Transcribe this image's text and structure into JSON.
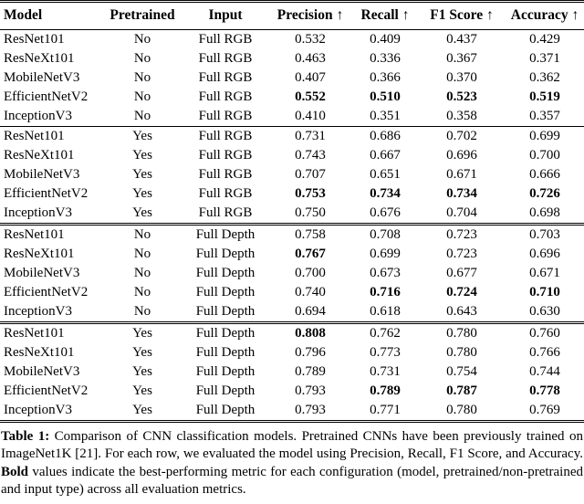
{
  "page": {
    "background_color": "#ffffff",
    "text_color": "#000000"
  },
  "table": {
    "columns": [
      {
        "label": "Model",
        "align": "left"
      },
      {
        "label": "Pretrained",
        "align": "center"
      },
      {
        "label": "Input",
        "align": "center"
      },
      {
        "label": "Precision ↑",
        "align": "center"
      },
      {
        "label": "Recall ↑",
        "align": "center"
      },
      {
        "label": "F1 Score ↑",
        "align": "center"
      },
      {
        "label": "Accuracy ↑",
        "align": "center"
      }
    ],
    "groups": [
      {
        "separator_after": "single",
        "rows": [
          {
            "cells": [
              "ResNet101",
              "No",
              "Full RGB",
              "0.532",
              "0.409",
              "0.437",
              "0.429"
            ],
            "bold": []
          },
          {
            "cells": [
              "ResNeXt101",
              "No",
              "Full RGB",
              "0.463",
              "0.336",
              "0.367",
              "0.371"
            ],
            "bold": []
          },
          {
            "cells": [
              "MobileNetV3",
              "No",
              "Full RGB",
              "0.407",
              "0.366",
              "0.370",
              "0.362"
            ],
            "bold": []
          },
          {
            "cells": [
              "EfficientNetV2",
              "No",
              "Full RGB",
              "0.552",
              "0.510",
              "0.523",
              "0.519"
            ],
            "bold": [
              3,
              4,
              5,
              6
            ]
          },
          {
            "cells": [
              "InceptionV3",
              "No",
              "Full RGB",
              "0.410",
              "0.351",
              "0.358",
              "0.357"
            ],
            "bold": []
          }
        ]
      },
      {
        "separator_after": "double",
        "rows": [
          {
            "cells": [
              "ResNet101",
              "Yes",
              "Full RGB",
              "0.731",
              "0.686",
              "0.702",
              "0.699"
            ],
            "bold": []
          },
          {
            "cells": [
              "ResNeXt101",
              "Yes",
              "Full RGB",
              "0.743",
              "0.667",
              "0.696",
              "0.700"
            ],
            "bold": []
          },
          {
            "cells": [
              "MobileNetV3",
              "Yes",
              "Full RGB",
              "0.707",
              "0.651",
              "0.671",
              "0.666"
            ],
            "bold": []
          },
          {
            "cells": [
              "EfficientNetV2",
              "Yes",
              "Full RGB",
              "0.753",
              "0.734",
              "0.734",
              "0.726"
            ],
            "bold": [
              3,
              4,
              5,
              6
            ]
          },
          {
            "cells": [
              "InceptionV3",
              "Yes",
              "Full RGB",
              "0.750",
              "0.676",
              "0.704",
              "0.698"
            ],
            "bold": []
          }
        ]
      },
      {
        "separator_after": "double",
        "rows": [
          {
            "cells": [
              "ResNet101",
              "No",
              "Full Depth",
              "0.758",
              "0.708",
              "0.723",
              "0.703"
            ],
            "bold": []
          },
          {
            "cells": [
              "ResNeXt101",
              "No",
              "Full Depth",
              "0.767",
              "0.699",
              "0.723",
              "0.696"
            ],
            "bold": [
              3
            ]
          },
          {
            "cells": [
              "MobileNetV3",
              "No",
              "Full Depth",
              "0.700",
              "0.673",
              "0.677",
              "0.671"
            ],
            "bold": []
          },
          {
            "cells": [
              "EfficientNetV2",
              "No",
              "Full Depth",
              "0.740",
              "0.716",
              "0.724",
              "0.710"
            ],
            "bold": [
              4,
              5,
              6
            ]
          },
          {
            "cells": [
              "InceptionV3",
              "No",
              "Full Depth",
              "0.694",
              "0.618",
              "0.643",
              "0.630"
            ],
            "bold": []
          }
        ]
      },
      {
        "separator_after": "none",
        "rows": [
          {
            "cells": [
              "ResNet101",
              "Yes",
              "Full Depth",
              "0.808",
              "0.762",
              "0.780",
              "0.760"
            ],
            "bold": [
              3
            ]
          },
          {
            "cells": [
              "ResNeXt101",
              "Yes",
              "Full Depth",
              "0.796",
              "0.773",
              "0.780",
              "0.766"
            ],
            "bold": []
          },
          {
            "cells": [
              "MobileNetV3",
              "Yes",
              "Full Depth",
              "0.789",
              "0.731",
              "0.754",
              "0.744"
            ],
            "bold": []
          },
          {
            "cells": [
              "EfficientNetV2",
              "Yes",
              "Full Depth",
              "0.793",
              "0.789",
              "0.787",
              "0.778"
            ],
            "bold": [
              4,
              5,
              6
            ]
          },
          {
            "cells": [
              "InceptionV3",
              "Yes",
              "Full Depth",
              "0.793",
              "0.771",
              "0.780",
              "0.769"
            ],
            "bold": []
          }
        ]
      }
    ]
  },
  "caption": {
    "segments": [
      {
        "text": "Table 1:",
        "bold": true
      },
      {
        "text": " Comparison of CNN classification models. Pretrained CNNs have been previously trained on ImageNet1K [21]. For each row, we evaluated the model using Precision, Recall, F1 Score, and Accuracy. ",
        "bold": false
      },
      {
        "text": "Bold",
        "bold": true
      },
      {
        "text": " values indicate the best-performing metric for each configuration (model, pretrained/non-pretrained and input type) across all evaluation metrics.",
        "bold": false
      }
    ]
  }
}
